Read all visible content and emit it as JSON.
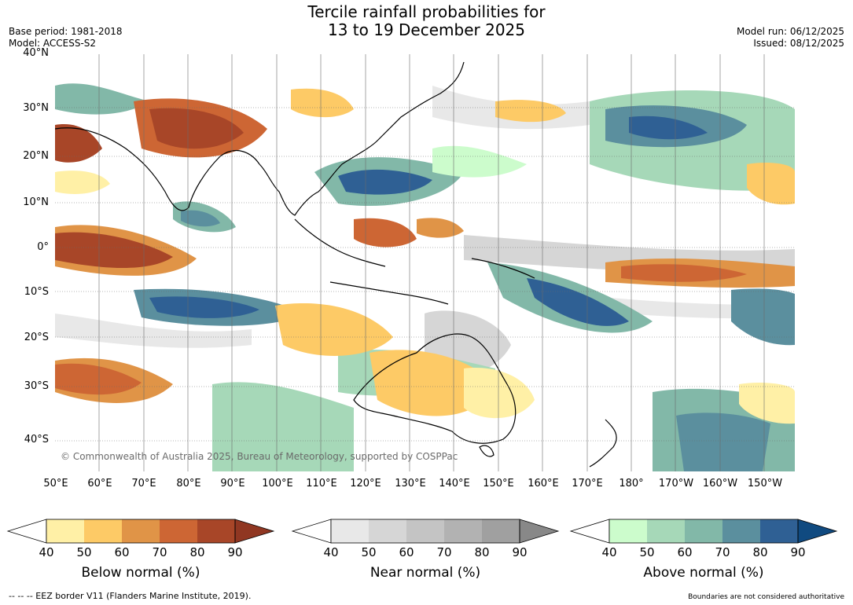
{
  "title_line1": "Tercile rainfall probabilities for",
  "title_line2": "13 to 19 December 2025",
  "meta_left": [
    "Base period: 1981-2018",
    "Model: ACCESS-S2"
  ],
  "meta_right": [
    "Model run: 06/12/2025",
    "Issued: 08/12/2025"
  ],
  "lat_labels": [
    "40°N",
    "30°N",
    "20°N",
    "10°N",
    "0°",
    "10°S",
    "20°S",
    "30°S",
    "40°S"
  ],
  "lon_labels": [
    "50°E",
    "60°E",
    "70°E",
    "80°E",
    "90°E",
    "100°E",
    "110°E",
    "120°E",
    "130°E",
    "140°E",
    "150°E",
    "160°E",
    "170°E",
    "180°",
    "170°W",
    "160°W",
    "150°W"
  ],
  "copyright": "© Commonwealth of Australia 2025, Bureau of Meteorology, supported by COSPPac",
  "colorbars": [
    {
      "label": "Below normal (%)",
      "ticks": [
        "40",
        "50",
        "60",
        "70",
        "80",
        "90"
      ],
      "colors": [
        "#fff0a6",
        "#fdca66",
        "#e09447",
        "#cd6634",
        "#a84628"
      ],
      "extend_color": "#903722"
    },
    {
      "label": "Near normal (%)",
      "ticks": [
        "40",
        "50",
        "60",
        "70",
        "80",
        "90"
      ],
      "colors": [
        "#e8e8e8",
        "#d6d6d6",
        "#c4c4c4",
        "#b2b2b2",
        "#a0a0a0"
      ],
      "extend_color": "#888888"
    },
    {
      "label": "Above normal (%)",
      "ticks": [
        "40",
        "50",
        "60",
        "70",
        "80",
        "90"
      ],
      "colors": [
        "#ccfccc",
        "#a6d8b8",
        "#82b8a8",
        "#5b8f9e",
        "#2f6094"
      ],
      "extend_color": "#104a80"
    }
  ],
  "footer_left": "--  --  -- EEZ border V11 (Flanders Marine Institute, 2019).",
  "footer_right": "Boundaries are not considered authoritative"
}
